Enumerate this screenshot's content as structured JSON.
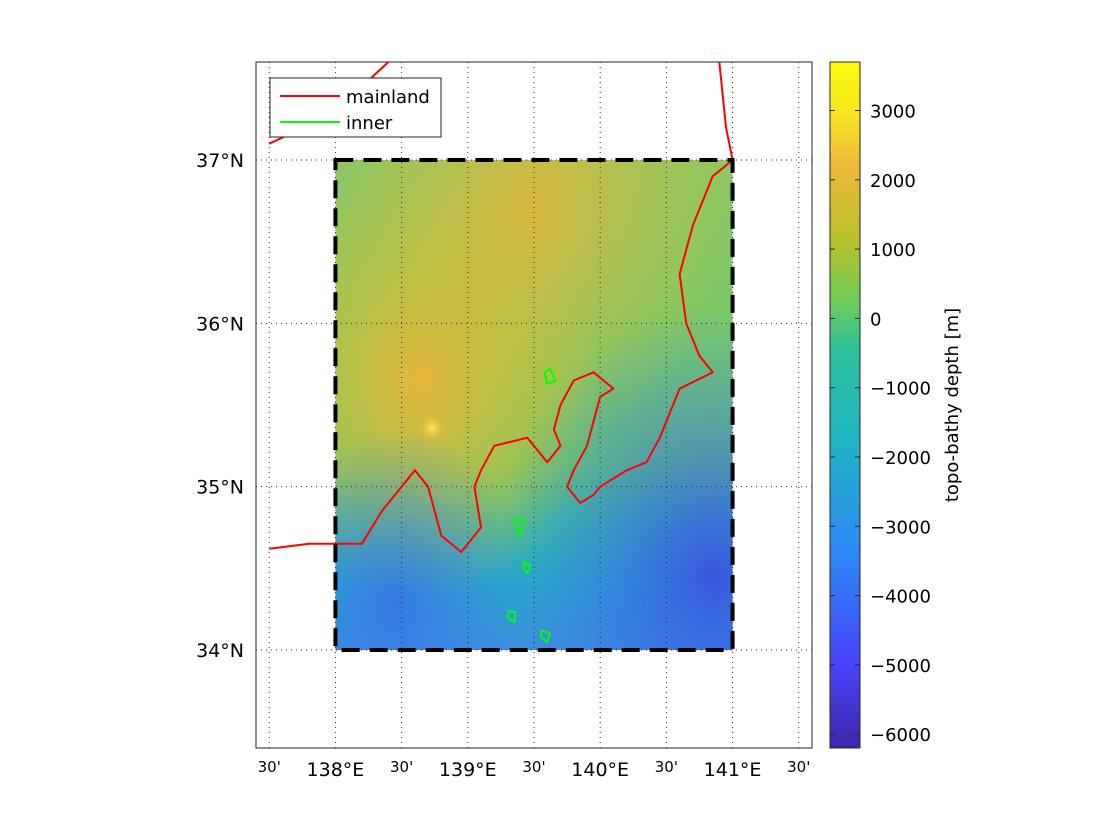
{
  "chart_data": {
    "type": "map",
    "map": {
      "lon_range": [
        137.4,
        141.6
      ],
      "lat_range": [
        33.4,
        37.6
      ],
      "lon_ticks": [
        {
          "value": 137.5,
          "label": "30'"
        },
        {
          "value": 138.0,
          "label": "138°E"
        },
        {
          "value": 138.5,
          "label": "30'"
        },
        {
          "value": 139.0,
          "label": "139°E"
        },
        {
          "value": 139.5,
          "label": "30'"
        },
        {
          "value": 140.0,
          "label": "140°E"
        },
        {
          "value": 140.5,
          "label": "30'"
        },
        {
          "value": 141.0,
          "label": "141°E"
        },
        {
          "value": 141.5,
          "label": "30'"
        }
      ],
      "lat_ticks": [
        {
          "value": 34,
          "label": "34°N"
        },
        {
          "value": 35,
          "label": "35°N"
        },
        {
          "value": 36,
          "label": "36°N"
        },
        {
          "value": 37,
          "label": "37°N"
        }
      ],
      "grid": true,
      "grid_style": "dotted"
    },
    "domain_box": {
      "lon": [
        138.0,
        141.0
      ],
      "lat": [
        34.0,
        37.0
      ],
      "style": "dashed",
      "color": "#000000"
    },
    "colorbar": {
      "label": "topo-bathy depth [m]",
      "range": [
        -6200,
        3700
      ],
      "ticks": [
        3000,
        2000,
        1000,
        0,
        -1000,
        -2000,
        -3000,
        -4000,
        -5000,
        -6000
      ],
      "tick_labels": [
        "3000",
        "2000",
        "1000",
        "0",
        "−1000",
        "−2000",
        "−3000",
        "−4000",
        "−5000",
        "−6000"
      ],
      "colormap": [
        "#3e26a8",
        "#4743f8",
        "#2e87f7",
        "#1fb5c3",
        "#2ec09b",
        "#6dcd59",
        "#b8c12a",
        "#f0b83a",
        "#f8e91e",
        "#f9fb0e"
      ]
    },
    "legend": {
      "position": "top-left",
      "entries": [
        {
          "name": "mainland",
          "color": "#ff0000"
        },
        {
          "name": "inner",
          "color": "#00ff00"
        }
      ]
    },
    "series": [
      {
        "name": "mainland",
        "color": "#ff0000",
        "lines": [
          [
            [
              137.5,
              37.1
            ],
            [
              137.9,
              37.25
            ],
            [
              138.2,
              37.45
            ],
            [
              138.4,
              37.6
            ]
          ],
          [
            [
              140.9,
              37.6
            ],
            [
              140.95,
              37.2
            ],
            [
              141.0,
              37.0
            ],
            [
              140.85,
              36.9
            ],
            [
              140.7,
              36.6
            ],
            [
              140.6,
              36.3
            ],
            [
              140.65,
              36.0
            ],
            [
              140.75,
              35.8
            ],
            [
              140.85,
              35.7
            ],
            [
              140.6,
              35.6
            ],
            [
              140.45,
              35.3
            ],
            [
              140.35,
              35.15
            ],
            [
              140.2,
              35.1
            ],
            [
              140.0,
              35.0
            ],
            [
              139.95,
              34.95
            ],
            [
              139.85,
              34.9
            ],
            [
              139.75,
              35.0
            ],
            [
              139.8,
              35.1
            ],
            [
              139.9,
              35.25
            ],
            [
              139.95,
              35.4
            ],
            [
              140.0,
              35.55
            ],
            [
              140.1,
              35.6
            ],
            [
              139.95,
              35.7
            ],
            [
              139.8,
              35.65
            ],
            [
              139.7,
              35.5
            ],
            [
              139.65,
              35.35
            ],
            [
              139.7,
              35.25
            ],
            [
              139.6,
              35.15
            ],
            [
              139.45,
              35.3
            ],
            [
              139.2,
              35.25
            ],
            [
              139.1,
              35.1
            ],
            [
              139.05,
              35.0
            ],
            [
              139.1,
              34.75
            ],
            [
              138.95,
              34.6
            ],
            [
              138.8,
              34.7
            ],
            [
              138.75,
              34.85
            ],
            [
              138.7,
              35.0
            ],
            [
              138.6,
              35.1
            ],
            [
              138.5,
              35.0
            ],
            [
              138.35,
              34.85
            ],
            [
              138.2,
              34.65
            ],
            [
              138.0,
              34.65
            ],
            [
              137.8,
              34.65
            ],
            [
              137.5,
              34.62
            ]
          ]
        ]
      },
      {
        "name": "inner",
        "color": "#00ff00",
        "lines": [
          [
            [
              139.58,
              35.7
            ],
            [
              139.6,
              35.63
            ],
            [
              139.66,
              35.65
            ],
            [
              139.62,
              35.72
            ],
            [
              139.58,
              35.7
            ]
          ],
          [
            [
              139.35,
              34.75
            ],
            [
              139.4,
              34.7
            ],
            [
              139.42,
              34.8
            ],
            [
              139.36,
              34.8
            ],
            [
              139.35,
              34.75
            ]
          ],
          [
            [
              139.42,
              34.5
            ],
            [
              139.45,
              34.47
            ],
            [
              139.47,
              34.52
            ],
            [
              139.43,
              34.54
            ],
            [
              139.42,
              34.5
            ]
          ],
          [
            [
              139.3,
              34.2
            ],
            [
              139.35,
              34.17
            ],
            [
              139.36,
              34.23
            ],
            [
              139.31,
              34.24
            ],
            [
              139.3,
              34.2
            ]
          ],
          [
            [
              139.55,
              34.08
            ],
            [
              139.6,
              34.05
            ],
            [
              139.62,
              34.1
            ],
            [
              139.56,
              34.12
            ],
            [
              139.55,
              34.08
            ]
          ]
        ]
      }
    ]
  }
}
